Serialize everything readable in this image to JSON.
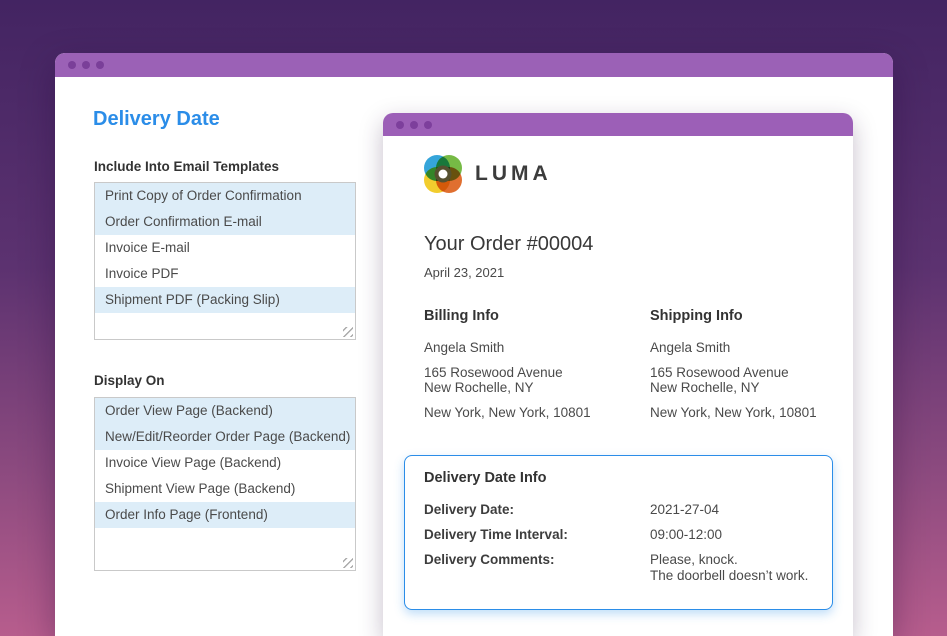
{
  "colors": {
    "bg-top": "#432462",
    "bg-bottom": "#b75d8d",
    "titlebar": "#9b61b6",
    "titlebar-dot": "#7a3f99",
    "titlebar2": "#9c5fb7",
    "titlebar-dot2": "#7d3f9c",
    "accent": "#2b8de8",
    "selected-row": "#ddedf8"
  },
  "settings_panel": {
    "title": "Delivery Date",
    "email_templates": {
      "label": "Include Into Email Templates",
      "options": [
        {
          "text": "Print Copy of Order Confirmation",
          "selected": true
        },
        {
          "text": "Order Confirmation E-mail",
          "selected": true
        },
        {
          "text": "Invoice E-mail",
          "selected": false
        },
        {
          "text": "Invoice PDF",
          "selected": false
        },
        {
          "text": "Shipment PDF (Packing Slip)",
          "selected": true
        }
      ]
    },
    "display_on": {
      "label": "Display On",
      "options": [
        {
          "text": "Order View Page (Backend)",
          "selected": true
        },
        {
          "text": "New/Edit/Reorder Order Page (Backend)",
          "selected": true
        },
        {
          "text": "Invoice View Page (Backend)",
          "selected": false
        },
        {
          "text": "Shipment View Page (Backend)",
          "selected": false
        },
        {
          "text": "Order Info Page (Frontend)",
          "selected": true
        }
      ]
    }
  },
  "email_preview": {
    "logo_text": "LUMA",
    "order_title": "Your Order #00004",
    "order_date": "April 23, 2021",
    "billing": {
      "heading": "Billing Info",
      "name": "Angela Smith",
      "address_line1": "165 Rosewood Avenue",
      "address_line2": "New Rochelle, NY",
      "city_line": "New York, New York, 10801"
    },
    "shipping": {
      "heading": "Shipping Info",
      "name": "Angela Smith",
      "address_line1": "165 Rosewood Avenue",
      "address_line2": "New Rochelle, NY",
      "city_line": "New York, New York, 10801"
    },
    "delivery_info": {
      "heading": "Delivery Date Info",
      "date_label": "Delivery Date:",
      "date_value": "2021-27-04",
      "interval_label": "Delivery Time Interval:",
      "interval_value": "09:00-12:00",
      "comments_label": "Delivery Comments:",
      "comments_line1": "Please, knock.",
      "comments_line2": "The doorbell doesn’t work."
    }
  }
}
